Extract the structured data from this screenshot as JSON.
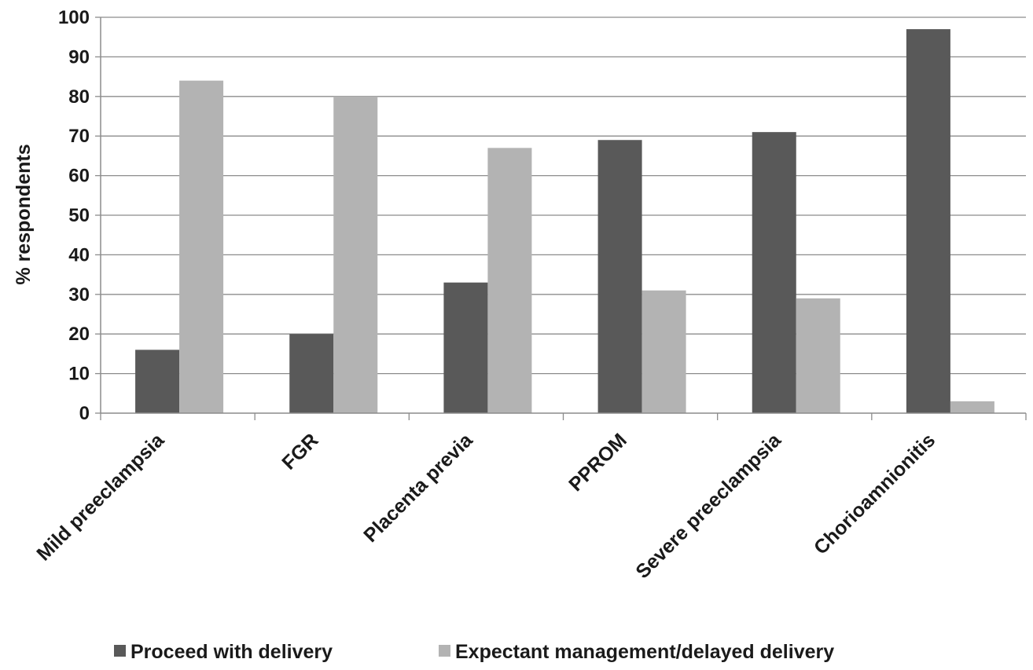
{
  "chart_data": {
    "type": "bar",
    "title": "",
    "xlabel": "",
    "ylabel": "% respondents",
    "ylim": [
      0,
      100
    ],
    "yticks": [
      0,
      10,
      20,
      30,
      40,
      50,
      60,
      70,
      80,
      90,
      100
    ],
    "grid": true,
    "legend_position": "bottom",
    "categories": [
      "Mild preeclampsia",
      "FGR",
      "Placenta previa",
      "PPROM",
      "Severe preeclampsia",
      "Chorioamnionitis"
    ],
    "series": [
      {
        "name": "Proceed with delivery",
        "color": "#595959",
        "values": [
          16,
          20,
          33,
          69,
          71,
          97
        ]
      },
      {
        "name": "Expectant management/delayed delivery",
        "color": "#b3b3b3",
        "values": [
          84,
          80,
          67,
          31,
          29,
          3
        ]
      }
    ]
  }
}
